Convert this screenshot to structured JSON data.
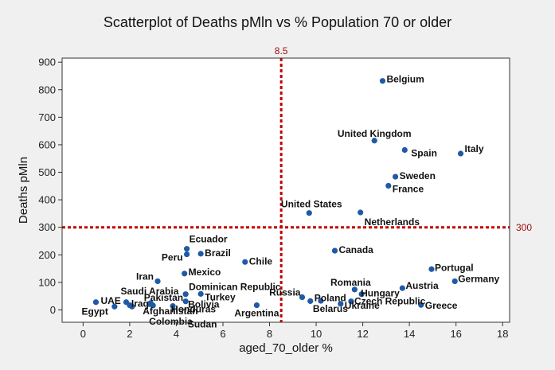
{
  "chart_data": {
    "type": "scatter",
    "title": "Scatterplot of Deaths pMln vs % Population 70 or older",
    "xlabel": "aged_70_older %",
    "ylabel": "Deaths pMln",
    "xlim": [
      -0.9,
      18.3
    ],
    "ylim": [
      -45,
      915
    ],
    "xticks": [
      0,
      2,
      4,
      6,
      8,
      10,
      12,
      14,
      16,
      18
    ],
    "yticks": [
      0,
      100,
      200,
      300,
      400,
      500,
      600,
      700,
      800,
      900
    ],
    "reference_lines": {
      "vertical": {
        "value": 8.5,
        "label": "8.5"
      },
      "horizontal": {
        "value": 300,
        "label": "300"
      }
    },
    "colors": {
      "points": "#1f5aa6",
      "reference": "#c00000",
      "plot_bg": "#ffffff",
      "frame_bg": "#f0f0f0"
    },
    "points": [
      {
        "name": "Belgium",
        "x": 12.85,
        "y": 832
      },
      {
        "name": "United Kingdom",
        "x": 12.5,
        "y": 615
      },
      {
        "name": "Spain",
        "x": 13.8,
        "y": 581
      },
      {
        "name": "Italy",
        "x": 16.2,
        "y": 568
      },
      {
        "name": "Sweden",
        "x": 13.4,
        "y": 484
      },
      {
        "name": "France",
        "x": 13.1,
        "y": 451
      },
      {
        "name": "United States",
        "x": 9.7,
        "y": 352
      },
      {
        "name": "Netherlands",
        "x": 11.9,
        "y": 354
      },
      {
        "name": "Canada",
        "x": 10.8,
        "y": 215
      },
      {
        "name": "Ecuador",
        "x": 4.45,
        "y": 222
      },
      {
        "name": "Peru",
        "x": 4.45,
        "y": 202
      },
      {
        "name": "Brazil",
        "x": 5.05,
        "y": 204
      },
      {
        "name": "Chile",
        "x": 6.95,
        "y": 174
      },
      {
        "name": "Mexico",
        "x": 4.35,
        "y": 132
      },
      {
        "name": "Iran",
        "x": 3.2,
        "y": 104
      },
      {
        "name": "Dominican Republic",
        "x": 4.4,
        "y": 57
      },
      {
        "name": "Turkey",
        "x": 5.05,
        "y": 58
      },
      {
        "name": "Bolivia",
        "x": 4.4,
        "y": 31
      },
      {
        "name": "Saudi Arabia",
        "x": 1.85,
        "y": 28
      },
      {
        "name": "Pakistan",
        "x": 2.85,
        "y": 21
      },
      {
        "name": "Iraq",
        "x": 2.0,
        "y": 17
      },
      {
        "name": "Afghanistan",
        "x": 2.9,
        "y": 25
      },
      {
        "name": "Honduras",
        "x": 3.85,
        "y": 14
      },
      {
        "name": "Colombia",
        "x": 3.0,
        "y": 16
      },
      {
        "name": "Sudan",
        "x": 2.1,
        "y": 12
      },
      {
        "name": "UAE",
        "x": 0.55,
        "y": 28
      },
      {
        "name": "Egypt",
        "x": 1.35,
        "y": 12
      },
      {
        "name": "Argentina",
        "x": 7.45,
        "y": 17
      },
      {
        "name": "Russia",
        "x": 9.4,
        "y": 46
      },
      {
        "name": "Poland",
        "x": 9.75,
        "y": 32
      },
      {
        "name": "Belarus",
        "x": 10.2,
        "y": 33
      },
      {
        "name": "Romania",
        "x": 11.65,
        "y": 74
      },
      {
        "name": "Hungary",
        "x": 11.95,
        "y": 57
      },
      {
        "name": "Czech Republic",
        "x": 11.5,
        "y": 31
      },
      {
        "name": "Ukraine",
        "x": 11.05,
        "y": 22
      },
      {
        "name": "Austria",
        "x": 13.7,
        "y": 79
      },
      {
        "name": "Portugal",
        "x": 14.95,
        "y": 148
      },
      {
        "name": "Germany",
        "x": 15.95,
        "y": 104
      },
      {
        "name": "Greece",
        "x": 14.5,
        "y": 18
      }
    ]
  }
}
